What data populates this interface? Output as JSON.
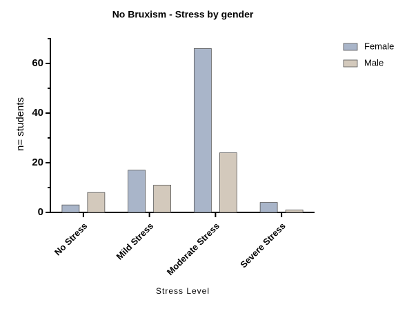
{
  "chart_data": {
    "type": "bar",
    "title": "No Bruxism - Stress by gender",
    "x_label": "Stress Level",
    "y_label": "n= students",
    "categories": [
      "No Stress",
      "Mild Stress",
      "Moderate Stress",
      "Severe Stress"
    ],
    "series": [
      {
        "name": "Female",
        "color": "#a9b5c9",
        "values": [
          3,
          17,
          66,
          4
        ]
      },
      {
        "name": "Male",
        "color": "#d3c9bc",
        "values": [
          8,
          11,
          24,
          1
        ]
      }
    ],
    "ylim": [
      0,
      70
    ],
    "yticks": [
      0,
      20,
      40,
      60
    ],
    "yminorticks": [
      10,
      30,
      50,
      70
    ],
    "grid": false,
    "legend": "right"
  }
}
